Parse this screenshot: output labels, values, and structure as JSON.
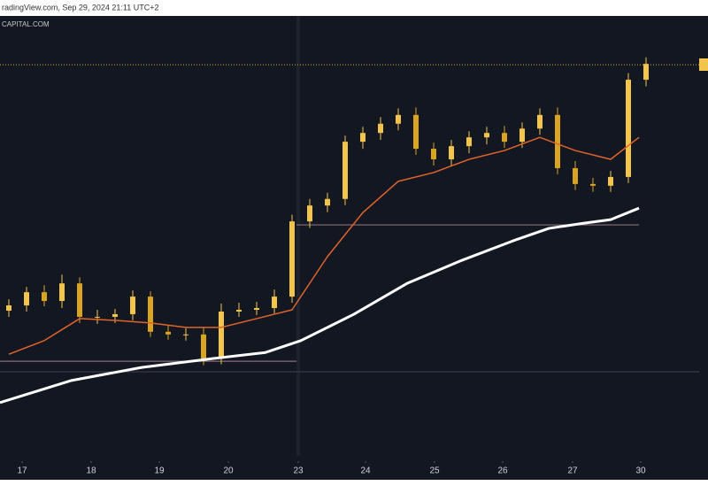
{
  "chart_data": {
    "type": "candlestick",
    "header": "radingView.com, Sep 29, 2024 21:11 UTC+2",
    "source": "CAPITAL.COM",
    "xlim": [
      0,
      790
    ],
    "ylim": [
      0,
      100
    ],
    "xticks": [
      {
        "value": 25,
        "label": "17"
      },
      {
        "value": 103,
        "label": "18"
      },
      {
        "value": 180,
        "label": "19"
      },
      {
        "value": 258,
        "label": "20"
      },
      {
        "value": 337,
        "label": "23"
      },
      {
        "value": 413,
        "label": "24"
      },
      {
        "value": 491,
        "label": "25"
      },
      {
        "value": 568,
        "label": "26"
      },
      {
        "value": 647,
        "label": "27"
      },
      {
        "value": 724,
        "label": "30"
      }
    ],
    "x": [
      10,
      30,
      50,
      70,
      90,
      110,
      130,
      150,
      170,
      190,
      210,
      230,
      250,
      270,
      290,
      310,
      330,
      350,
      370,
      390,
      410,
      430,
      450,
      470,
      490,
      510,
      530,
      550,
      570,
      590,
      610,
      630,
      650,
      670,
      690,
      710,
      730
    ],
    "open": [
      33.0,
      34.2,
      37.2,
      35.2,
      39.2,
      31.6,
      31.6,
      32.2,
      36.2,
      28.2,
      27.6,
      27.6,
      22.1,
      32.8,
      33.2,
      33.6,
      36.2,
      53.3,
      56.9,
      58.4,
      71.4,
      73.4,
      75.5,
      77.5,
      69.8,
      67.4,
      70.4,
      72.4,
      73.4,
      71.4,
      74.4,
      77.5,
      65.4,
      61.8,
      61.4,
      63.4,
      85.5
    ],
    "high": [
      35.6,
      38.4,
      38.8,
      41.2,
      40.6,
      33.2,
      33.4,
      37.6,
      37.4,
      29.6,
      29.0,
      29.2,
      34.6,
      34.8,
      35.0,
      37.8,
      54.8,
      58.4,
      59.8,
      72.8,
      74.8,
      77.0,
      79.0,
      79.2,
      71.2,
      71.8,
      73.8,
      74.8,
      75.0,
      75.8,
      79.0,
      79.2,
      67.0,
      63.2,
      64.8,
      87.0,
      90.6
    ],
    "low": [
      31.6,
      32.8,
      34.0,
      33.6,
      30.2,
      30.0,
      30.2,
      30.8,
      27.0,
      26.4,
      26.2,
      20.6,
      20.8,
      31.6,
      32.0,
      32.4,
      34.8,
      51.8,
      55.4,
      57.0,
      69.8,
      71.8,
      74.0,
      68.4,
      66.0,
      66.0,
      68.8,
      70.8,
      70.0,
      70.0,
      73.0,
      64.0,
      60.4,
      60.0,
      60.0,
      62.0,
      84.0
    ],
    "close": [
      34.2,
      37.2,
      35.2,
      39.2,
      31.6,
      31.6,
      32.2,
      36.2,
      28.2,
      27.6,
      27.6,
      22.1,
      32.8,
      33.2,
      33.6,
      36.2,
      53.3,
      56.9,
      58.4,
      71.4,
      73.4,
      75.5,
      77.5,
      69.8,
      67.4,
      70.4,
      72.4,
      73.4,
      71.4,
      74.4,
      77.5,
      65.4,
      61.8,
      61.4,
      63.4,
      85.5,
      89.1
    ],
    "color_up": "#f2c44b",
    "color_down": "#d9a521",
    "series": [
      {
        "color": "#e0652a",
        "x": [
          10,
          50,
          90,
          130,
          170,
          210,
          250,
          290,
          330,
          370,
          410,
          450,
          490,
          530,
          570,
          610,
          650,
          690,
          722
        ],
        "values": [
          23.1,
          26.2,
          31.2,
          30.8,
          30.2,
          29.2,
          29.2,
          31.2,
          33.2,
          45.3,
          55.3,
          62.4,
          64.4,
          67.4,
          69.4,
          72.4,
          69.4,
          67.4,
          72.4
        ]
      },
      {
        "color": "#ffffff",
        "x": [
          0,
          80,
          160,
          240,
          300,
          340,
          400,
          460,
          520,
          580,
          620,
          660,
          690,
          722
        ],
        "values": [
          12.1,
          17.1,
          20.1,
          22.1,
          23.5,
          26.2,
          32.2,
          39.2,
          44.3,
          48.9,
          51.7,
          52.9,
          53.7,
          56.3
        ]
      }
    ],
    "levels": [
      {
        "value": 88.9,
        "x": [
          0,
          790
        ],
        "color": "#c9a227"
      },
      {
        "value": 21.5,
        "x": [
          0,
          335
        ],
        "color": "#8a6d7a"
      },
      {
        "value": 52.5,
        "x": [
          335,
          722
        ],
        "color": "#8a6d7a"
      },
      {
        "value": 19.1,
        "x": [
          0,
          790
        ],
        "color": "#3a3d4a"
      }
    ]
  }
}
